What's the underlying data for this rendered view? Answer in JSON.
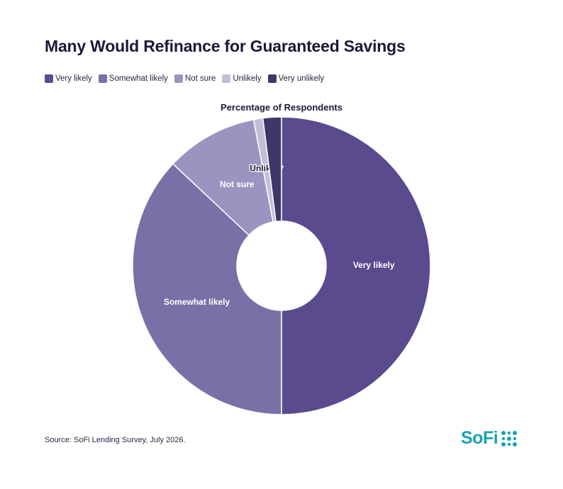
{
  "title": "Many Would Refinance for Guaranteed Savings",
  "source": "Source: SoFi Lending Survey, July 2026.",
  "logo": "SoFi",
  "chart_data": {
    "type": "pie",
    "donut": true,
    "title": "Percentage of Respondents",
    "legend_position": "top-left",
    "categories": [
      "Very likely",
      "Somewhat likely",
      "Not sure",
      "Unlikely",
      "Very unlikely"
    ],
    "values": [
      50,
      37,
      10,
      1,
      2
    ],
    "colors": [
      "#5a4b8f",
      "#7a70a8",
      "#9c94c0",
      "#c2bdd9",
      "#3f3768"
    ],
    "slice_labels": [
      "Very likely",
      "Somewhat likely",
      "Not sure",
      "Unlikely",
      ""
    ],
    "label_colors": [
      "#ffffff",
      "#ffffff",
      "#ffffff",
      "#1c1838",
      "#ffffff"
    ]
  }
}
